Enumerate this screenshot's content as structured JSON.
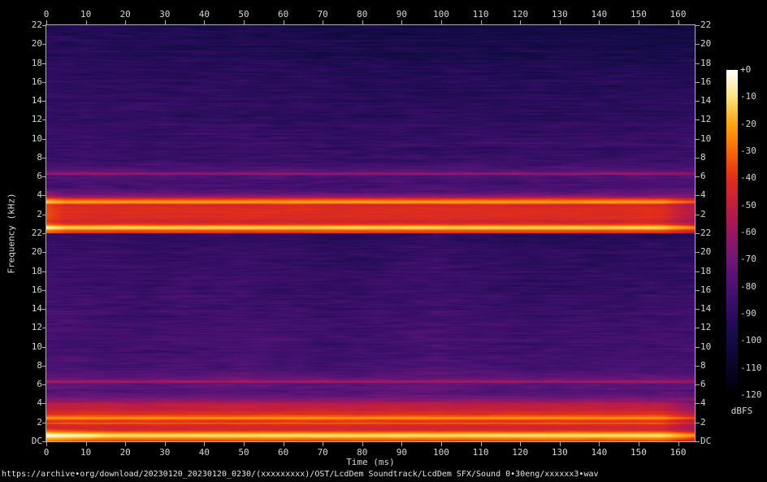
{
  "status_bar": {
    "url_text": "https://archive•org/download/20230120_20230120_0230/(xxxxxxxxx)/OST/LcdDem Soundtrack/LcdDem SFX/Sound 0•30eng/xxxxxx3•wav"
  },
  "chart_data": {
    "type": "heatmap",
    "subtype": "audio-spectrogram-stereo",
    "title": "https://archive•org/download/20230120_20230120_0230/(xxxxxxxxx)/OST/LcdDem Soundtrack/LcdDem SFX/Sound 0•30eng/xxxxxx3•wav",
    "xlabel": "Time (ms)",
    "ylabel": "Frequency (kHz)",
    "colorbar_label": "dBFS",
    "x_max_ms": 164.2,
    "x_ticks_ms": [
      0,
      10,
      20,
      30,
      40,
      50,
      60,
      70,
      80,
      90,
      100,
      110,
      120,
      130,
      140,
      150,
      160
    ],
    "freq_max_khz": 22,
    "freq_tick_khz": [
      22,
      20,
      18,
      16,
      14,
      12,
      10,
      8,
      6,
      4,
      2
    ],
    "dc_label": "DC",
    "db_ticks": [
      "+0",
      "-10",
      "-20",
      "-30",
      "-40",
      "-50",
      "-60",
      "-70",
      "-80",
      "-90",
      "-100",
      "-110",
      "-120"
    ],
    "db_range": [
      0,
      -120
    ],
    "grid": false,
    "legend_position": "right-colorbar",
    "palette": [
      [
        0.0,
        [
          0,
          0,
          0
        ]
      ],
      [
        0.085,
        [
          8,
          5,
          40
        ]
      ],
      [
        0.17,
        [
          20,
          11,
          70
        ]
      ],
      [
        0.25,
        [
          45,
          13,
          95
        ]
      ],
      [
        0.335,
        [
          75,
          18,
          115
        ]
      ],
      [
        0.42,
        [
          112,
          23,
          119
        ]
      ],
      [
        0.5,
        [
          152,
          23,
          98
        ]
      ],
      [
        0.585,
        [
          192,
          30,
          62
        ]
      ],
      [
        0.67,
        [
          226,
          47,
          26
        ]
      ],
      [
        0.75,
        [
          248,
          103,
          8
        ]
      ],
      [
        0.835,
        [
          253,
          167,
          14
        ]
      ],
      [
        0.92,
        [
          254,
          228,
          130
        ]
      ],
      [
        1.0,
        [
          255,
          255,
          255
        ]
      ]
    ],
    "channels": [
      {
        "name": "channel-1-left",
        "seed": 1337,
        "hf_darken_db": 7,
        "attack": {
          "t_ms": 5,
          "f_khz": 4.5,
          "gain_db": 7
        },
        "noise_floor_db": [
          [
            0,
            -42
          ],
          [
            0.12,
            -40
          ],
          [
            0.28,
            -36
          ],
          [
            0.4,
            -28
          ],
          [
            0.52,
            -15
          ],
          [
            0.68,
            -13
          ],
          [
            0.85,
            -26
          ],
          [
            1.0,
            -38
          ],
          [
            1.25,
            -46
          ],
          [
            1.6,
            -43
          ],
          [
            2.0,
            -42
          ],
          [
            2.4,
            -41
          ],
          [
            2.8,
            -42
          ],
          [
            3.05,
            -44
          ],
          [
            3.3,
            -18
          ],
          [
            3.55,
            -30
          ],
          [
            3.9,
            -58
          ],
          [
            4.3,
            -74
          ],
          [
            4.8,
            -80
          ],
          [
            5.3,
            -82
          ],
          [
            5.9,
            -79
          ],
          [
            6.15,
            -76
          ],
          [
            6.35,
            -58
          ],
          [
            6.55,
            -74
          ],
          [
            6.8,
            -78
          ],
          [
            7.5,
            -84
          ],
          [
            8.5,
            -86
          ],
          [
            9.5,
            -86
          ],
          [
            11,
            -87
          ],
          [
            13,
            -88
          ],
          [
            16,
            -89
          ],
          [
            19,
            -91
          ],
          [
            22,
            -94
          ]
        ]
      },
      {
        "name": "channel-2-right",
        "seed": 4242,
        "hf_darken_db": 5,
        "attack": {
          "t_ms": 17,
          "f_khz": 1.3,
          "gain_db": 9
        },
        "noise_floor_db": [
          [
            0,
            -38
          ],
          [
            0.2,
            -34
          ],
          [
            0.38,
            -26
          ],
          [
            0.5,
            -16
          ],
          [
            0.65,
            -11
          ],
          [
            0.8,
            -15
          ],
          [
            1.0,
            -30
          ],
          [
            1.2,
            -42
          ],
          [
            1.5,
            -44
          ],
          [
            1.8,
            -42
          ],
          [
            1.95,
            -30
          ],
          [
            2.1,
            -40
          ],
          [
            2.3,
            -36
          ],
          [
            2.5,
            -20
          ],
          [
            2.65,
            -30
          ],
          [
            2.9,
            -40
          ],
          [
            3.2,
            -44
          ],
          [
            3.5,
            -48
          ],
          [
            3.9,
            -52
          ],
          [
            4.3,
            -62
          ],
          [
            4.8,
            -72
          ],
          [
            5.3,
            -78
          ],
          [
            5.9,
            -75
          ],
          [
            6.15,
            -72
          ],
          [
            6.35,
            -56
          ],
          [
            6.55,
            -70
          ],
          [
            6.8,
            -74
          ],
          [
            7.5,
            -80
          ],
          [
            8.5,
            -82
          ],
          [
            9.5,
            -83
          ],
          [
            11,
            -83
          ],
          [
            13,
            -84
          ],
          [
            16,
            -85
          ],
          [
            19,
            -86
          ],
          [
            22,
            -88
          ]
        ]
      }
    ],
    "render": {
      "noise_amp_db": 6.5,
      "row_bias_db": 2.4,
      "fade_start_ms": 156,
      "fade_rate_db_per_ms": 1.6
    }
  }
}
